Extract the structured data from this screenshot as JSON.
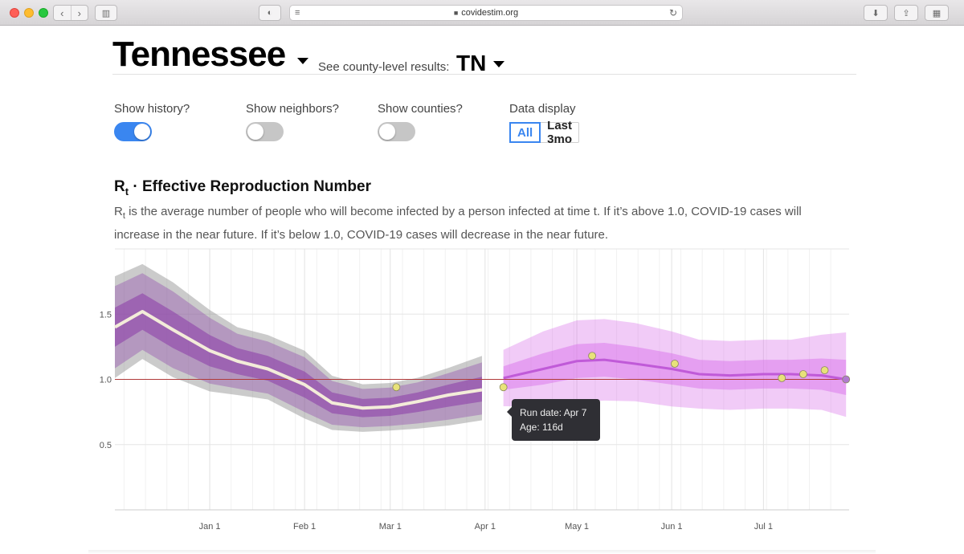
{
  "browser": {
    "url": "covidestim.org",
    "icons": [
      "back-icon",
      "forward-icon",
      "sidebar-icon",
      "shield-icon",
      "reader-icon",
      "lock-icon",
      "reload-icon",
      "download-icon",
      "share-icon",
      "tabs-overview-icon"
    ]
  },
  "header": {
    "state": "Tennessee",
    "county_label": "See county-level results:",
    "county_value": "TN"
  },
  "controls": {
    "history": {
      "label": "Show history?",
      "on": true
    },
    "neighbors": {
      "label": "Show neighbors?",
      "on": false
    },
    "counties": {
      "label": "Show counties?",
      "on": false
    },
    "display": {
      "label": "Data display",
      "options": [
        "All",
        "Last 3mo"
      ],
      "selected": "All"
    }
  },
  "section": {
    "title_main": "R",
    "title_sub": "t",
    "title_rest": " · Effective Reproduction Number",
    "desc_main": "R",
    "desc_sub": "t",
    "desc_rest": " is the average number of people who will become infected by a person infected at time t. If it’s above 1.0, COVID-19 cases will increase in the near future. If it’s below 1.0, COVID-19 cases will decrease in the near future."
  },
  "tooltip": {
    "line1": "Run date: Apr 7",
    "line2": "Age: 116d"
  },
  "colors": {
    "accent": "#3a86f0",
    "history_band": "#8b8b8b",
    "rt_band": "#8a3aa8",
    "future_band": "#d86be8",
    "reference_line": "#b03a3a",
    "run_point": "#e8e27a",
    "tooltip_bg": "#2f2f34"
  },
  "chart_data": {
    "type": "line",
    "xlabel": "",
    "ylabel": "",
    "x_tick_labels": [
      "Jan 1",
      "Feb 1",
      "Mar 1",
      "Apr 1",
      "May 1",
      "Jun 1",
      "Jul 1"
    ],
    "y_tick_labels": [
      "0.5",
      "1.0",
      "1.5"
    ],
    "ylim": [
      0.0,
      2.0
    ],
    "reference_line": 1.0,
    "grid": true,
    "series": [
      {
        "x": [
          "Dec 1",
          "Dec 10",
          "Dec 20",
          "Jan 1",
          "Jan 10",
          "Jan 20",
          "Feb 1",
          "Feb 10",
          "Feb 20",
          "Mar 1",
          "Mar 10",
          "Mar 20",
          "Mar 31"
        ],
        "y": [
          1.4,
          1.52,
          1.38,
          1.22,
          1.14,
          1.08,
          0.96,
          0.82,
          0.78,
          0.79,
          0.83,
          0.88,
          0.92
        ],
        "lower": [
          1.25,
          1.38,
          1.24,
          1.1,
          1.04,
          0.99,
          0.86,
          0.74,
          0.71,
          0.72,
          0.75,
          0.79,
          0.83
        ],
        "upper": [
          1.55,
          1.66,
          1.52,
          1.34,
          1.24,
          1.18,
          1.06,
          0.9,
          0.85,
          0.86,
          0.9,
          0.96,
          1.02
        ]
      },
      {
        "x": [
          "Apr 7",
          "Apr 20",
          "May 1",
          "May 10",
          "May 20",
          "Jun 1",
          "Jun 10",
          "Jun 20",
          "Jul 1",
          "Jul 10",
          "Jul 20",
          "Jul 28"
        ],
        "y": [
          1.01,
          1.08,
          1.14,
          1.15,
          1.12,
          1.08,
          1.04,
          1.03,
          1.04,
          1.04,
          1.03,
          1.0
        ],
        "lower": [
          0.92,
          0.96,
          1.01,
          1.02,
          1.0,
          0.96,
          0.93,
          0.92,
          0.93,
          0.93,
          0.92,
          0.88
        ],
        "upper": [
          1.1,
          1.2,
          1.27,
          1.28,
          1.25,
          1.2,
          1.15,
          1.14,
          1.15,
          1.15,
          1.16,
          1.15
        ]
      }
    ],
    "run_points": [
      {
        "x": "Mar 3",
        "y": 0.94
      },
      {
        "x": "Apr 7",
        "y": 0.94
      },
      {
        "x": "May 6",
        "y": 1.18
      },
      {
        "x": "Jun 2",
        "y": 1.12
      },
      {
        "x": "Jul 7",
        "y": 1.01
      },
      {
        "x": "Jul 14",
        "y": 1.04
      },
      {
        "x": "Jul 21",
        "y": 1.07
      },
      {
        "x": "Jul 28",
        "y": 1.0
      }
    ]
  }
}
